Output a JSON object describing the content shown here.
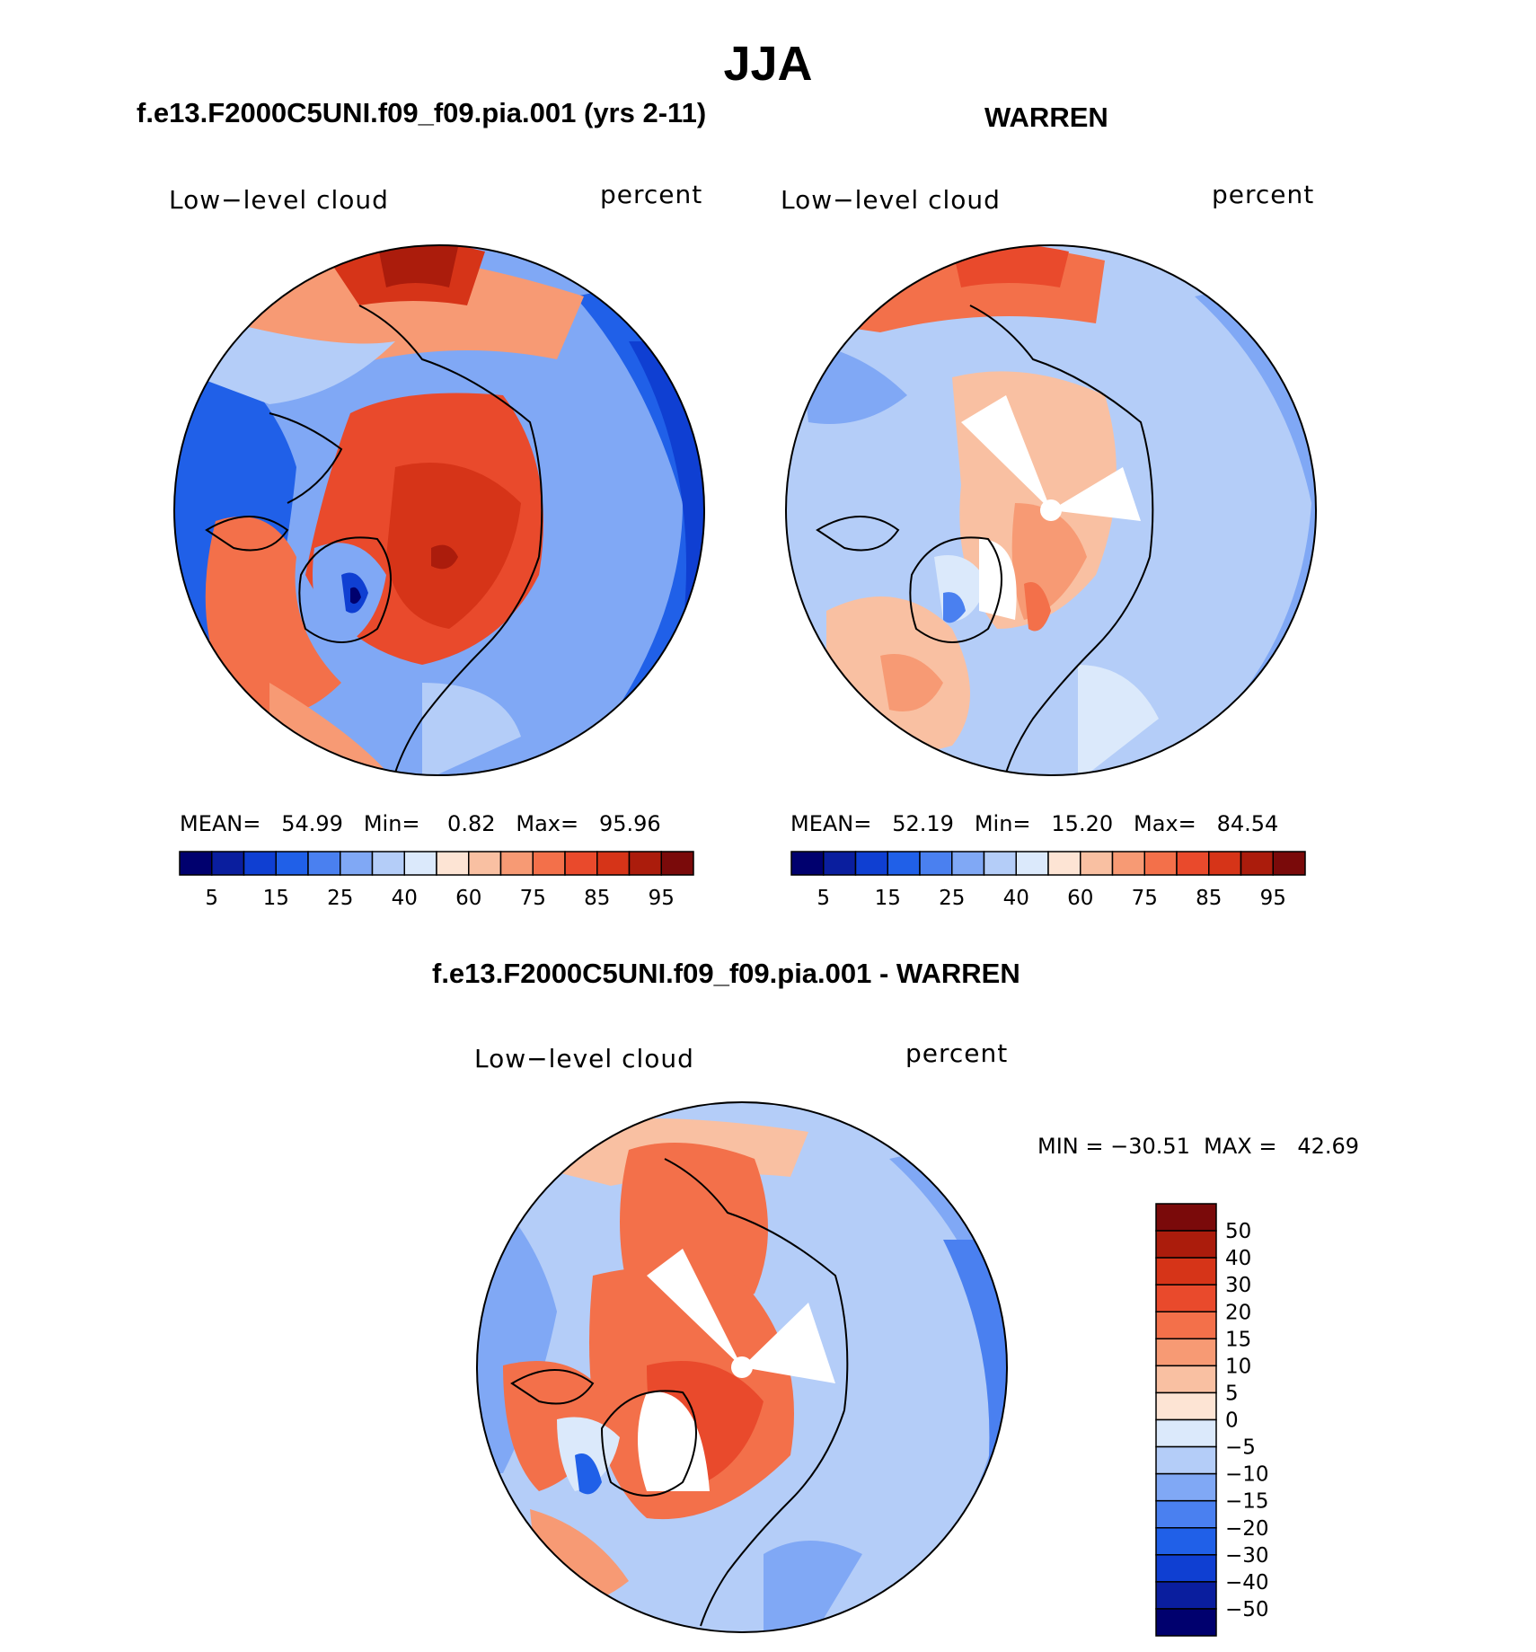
{
  "figure": {
    "title": "JJA"
  },
  "panels": [
    {
      "title": "f.e13.F2000C5UNI.f09_f09.pia.001 (yrs 2-11)",
      "left_label": "Low−level cloud",
      "right_label": "percent",
      "stats": "MEAN=   54.99   Min=    0.82   Max=   95.96"
    },
    {
      "title": "WARREN",
      "left_label": "Low−level cloud",
      "right_label": "percent",
      "stats": "MEAN=   52.19   Min=   15.20   Max=   84.54"
    },
    {
      "title": "f.e13.F2000C5UNI.f09_f09.pia.001 - WARREN",
      "left_label": "Low−level cloud",
      "right_label": "percent",
      "stats": "MIN = −30.51  MAX =   42.69"
    }
  ],
  "abs_colorbar": {
    "colors": [
      "#00006e",
      "#0a1e9e",
      "#0f3fd2",
      "#2060e8",
      "#4a80f0",
      "#80a8f5",
      "#b4cdf8",
      "#dbe9fb",
      "#fde4d4",
      "#f9c0a2",
      "#f79a74",
      "#f3704a",
      "#e94a2c",
      "#d63418",
      "#ab1c0c",
      "#7a0a0a"
    ],
    "labels": [
      "5",
      "15",
      "25",
      "40",
      "60",
      "75",
      "85",
      "95"
    ]
  },
  "diff_colorbar": {
    "colors": [
      "#7a0a0a",
      "#ab1c0c",
      "#d63418",
      "#e94a2c",
      "#f3704a",
      "#f79a74",
      "#f9c0a2",
      "#fde4d4",
      "#dbe9fb",
      "#b4cdf8",
      "#80a8f5",
      "#4a80f0",
      "#2060e8",
      "#0f3fd2",
      "#0a1e9e",
      "#00006e"
    ],
    "labels": [
      "50",
      "40",
      "30",
      "20",
      "15",
      "10",
      "5",
      "0",
      "−5",
      "−10",
      "−15",
      "−20",
      "−30",
      "−40",
      "−50"
    ]
  }
}
